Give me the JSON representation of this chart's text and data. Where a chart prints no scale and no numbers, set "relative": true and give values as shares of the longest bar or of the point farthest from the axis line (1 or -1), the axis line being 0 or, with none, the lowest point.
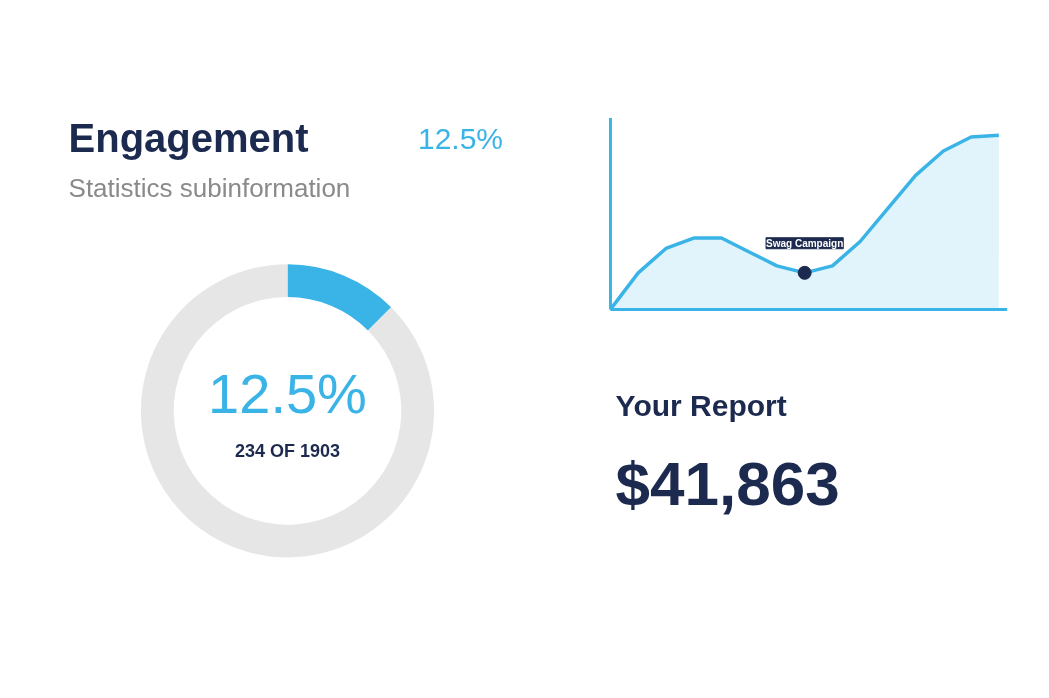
{
  "chart_data": [
    {
      "type": "donut",
      "title": "Engagement",
      "subtitle": "Statistics subinformation",
      "categories": [
        null,
        null
      ],
      "values": [
        12.5,
        87.5
      ],
      "colors": [
        "#3ab4e6",
        "#e6e6e6"
      ],
      "annotations": [
        "12.5%",
        "12.5%",
        "234 OF 1903"
      ]
    },
    {
      "type": "area",
      "relative": true,
      "categories": [
        null,
        null,
        null,
        null,
        null,
        null,
        null,
        null,
        null,
        null,
        null,
        null,
        null,
        null,
        null
      ],
      "values": [
        0,
        0.21,
        0.35,
        0.41,
        0.41,
        0.33,
        0.25,
        0.21,
        0.25,
        0.39,
        0.58,
        0.77,
        0.91,
        0.99,
        1.0
      ],
      "color": "#3ab4e6",
      "annotations": [
        "Swag Campaign"
      ]
    },
    {
      "type": "other",
      "title": "Your Report",
      "annotations": [
        "$41,863"
      ]
    }
  ]
}
